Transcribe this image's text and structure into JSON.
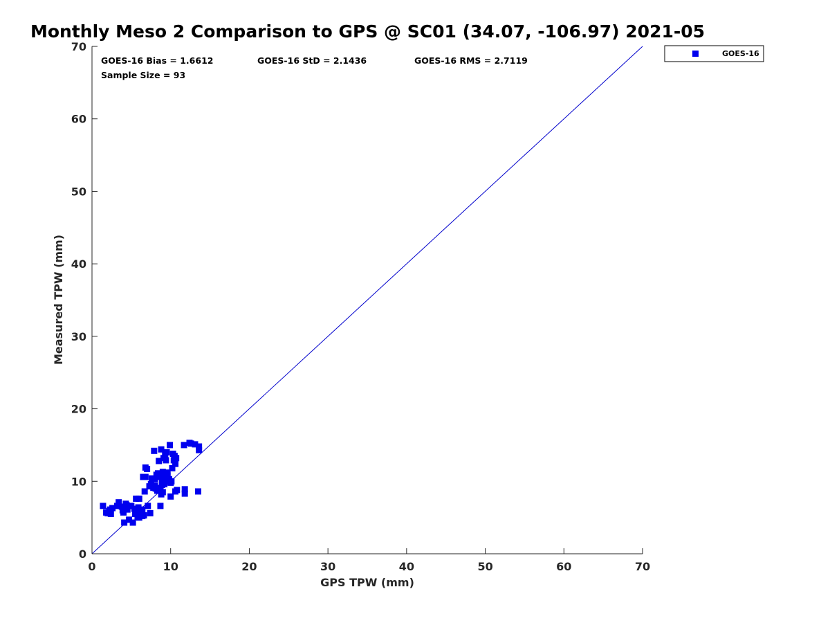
{
  "chart_data": {
    "type": "scatter",
    "title": "Monthly Meso 2 Comparison to GPS @ SC01 (34.07, -106.97) 2021-05",
    "xlabel": "GPS TPW (mm)",
    "ylabel": "Measured TPW (mm)",
    "xlim": [
      0,
      70
    ],
    "ylim": [
      0,
      70
    ],
    "xticks": [
      "0",
      "10",
      "20",
      "30",
      "40",
      "50",
      "60",
      "70"
    ],
    "yticks": [
      "0",
      "10",
      "20",
      "30",
      "40",
      "50",
      "60",
      "70"
    ],
    "grid": false,
    "legend_placement": "outside-top-right",
    "marker_color": "#0000ee",
    "line_color": "#0000cc",
    "reference_line": {
      "x": [
        0,
        70
      ],
      "y": [
        0,
        70
      ]
    },
    "stats": {
      "bias": "GOES-16 Bias = 1.6612",
      "std": "GOES-16 StD = 2.1436",
      "rms": "GOES-16 RMS = 2.7119",
      "sample": "Sample Size = 93"
    },
    "series": [
      {
        "name": "GOES-16",
        "points": [
          [
            1.4,
            6.6
          ],
          [
            1.8,
            5.7
          ],
          [
            2.2,
            5.9
          ],
          [
            2.4,
            5.5
          ],
          [
            2.6,
            6.3
          ],
          [
            2.3,
            6.1
          ],
          [
            3.4,
            7.1
          ],
          [
            3.8,
            6.5
          ],
          [
            4.0,
            5.7
          ],
          [
            4.1,
            4.3
          ],
          [
            4.3,
            6.9
          ],
          [
            4.5,
            6.1
          ],
          [
            4.7,
            4.7
          ],
          [
            5.0,
            6.6
          ],
          [
            5.2,
            4.3
          ],
          [
            5.4,
            6.2
          ],
          [
            5.6,
            7.6
          ],
          [
            5.8,
            5.1
          ],
          [
            5.9,
            6.4
          ],
          [
            6.0,
            7.6
          ],
          [
            6.1,
            5.7
          ],
          [
            6.2,
            5.5
          ],
          [
            6.4,
            5.2
          ],
          [
            6.4,
            6.1
          ],
          [
            6.5,
            10.6
          ],
          [
            6.7,
            8.6
          ],
          [
            6.8,
            10.6
          ],
          [
            6.8,
            11.9
          ],
          [
            7.0,
            11.7
          ],
          [
            7.1,
            6.6
          ],
          [
            7.4,
            5.6
          ],
          [
            7.5,
            9.6
          ],
          [
            7.8,
            9.1
          ],
          [
            7.9,
            14.2
          ],
          [
            8.0,
            10.3
          ],
          [
            8.1,
            9.0
          ],
          [
            8.3,
            8.7
          ],
          [
            8.4,
            11.1
          ],
          [
            8.5,
            12.8
          ],
          [
            8.6,
            10.6
          ],
          [
            8.7,
            9.1
          ],
          [
            8.7,
            6.6
          ],
          [
            8.8,
            14.4
          ],
          [
            8.8,
            8.2
          ],
          [
            8.9,
            10.1
          ],
          [
            9.0,
            11.3
          ],
          [
            9.1,
            13.2
          ],
          [
            9.2,
            9.6
          ],
          [
            9.3,
            10.7
          ],
          [
            9.3,
            13.7
          ],
          [
            9.4,
            12.9
          ],
          [
            9.5,
            10.2
          ],
          [
            9.5,
            14.0
          ],
          [
            9.6,
            11.2
          ],
          [
            9.7,
            10.0
          ],
          [
            9.8,
            10.3
          ],
          [
            9.9,
            15.0
          ],
          [
            10.0,
            9.8
          ],
          [
            10.0,
            7.9
          ],
          [
            10.2,
            11.8
          ],
          [
            10.3,
            13.8
          ],
          [
            10.4,
            12.9
          ],
          [
            10.5,
            13.5
          ],
          [
            10.6,
            12.4
          ],
          [
            10.6,
            8.6
          ],
          [
            10.8,
            8.8
          ],
          [
            11.7,
            15.0
          ],
          [
            11.8,
            8.9
          ],
          [
            11.8,
            8.3
          ],
          [
            12.4,
            15.3
          ],
          [
            12.6,
            15.2
          ],
          [
            13.1,
            15.1
          ],
          [
            13.5,
            8.6
          ],
          [
            13.6,
            14.8
          ],
          [
            13.6,
            14.3
          ],
          [
            3.2,
            6.6
          ],
          [
            4.9,
            6.6
          ],
          [
            6.0,
            5.0
          ],
          [
            7.3,
            9.3
          ],
          [
            8.2,
            10.9
          ],
          [
            9.0,
            8.5
          ],
          [
            2.0,
            5.6
          ],
          [
            3.9,
            6.0
          ],
          [
            5.5,
            5.5
          ],
          [
            7.6,
            10.4
          ],
          [
            8.9,
            9.5
          ],
          [
            9.6,
            10.8
          ],
          [
            10.1,
            10.0
          ],
          [
            6.6,
            5.3
          ],
          [
            4.4,
            6.7
          ],
          [
            8.0,
            9.4
          ],
          [
            9.4,
            11.0
          ],
          [
            10.7,
            13.2
          ]
        ]
      }
    ]
  }
}
